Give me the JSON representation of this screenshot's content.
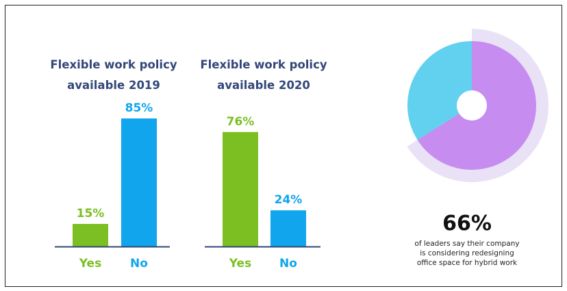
{
  "chart_data": [
    {
      "type": "bar",
      "title_lines": [
        "Flexible work policy",
        "available 2019"
      ],
      "categories": [
        "Yes",
        "No"
      ],
      "values": [
        15,
        85
      ],
      "value_labels": [
        "15%",
        "85%"
      ],
      "ylim": [
        0,
        100
      ],
      "colors": [
        "#7bbf22",
        "#10a5ec"
      ]
    },
    {
      "type": "bar",
      "title_lines": [
        "Flexible work policy",
        "available 2020"
      ],
      "categories": [
        "Yes",
        "No"
      ],
      "values": [
        76,
        24
      ],
      "value_labels": [
        "76%",
        "24%"
      ],
      "ylim": [
        0,
        100
      ],
      "colors": [
        "#7bbf22",
        "#10a5ec"
      ]
    },
    {
      "type": "pie",
      "values": [
        66,
        34
      ],
      "colors": [
        "#c78cf0",
        "#62d0ef"
      ],
      "ring_color": "#e9e1f6",
      "headline": "66%",
      "caption_lines": [
        "of leaders say their company",
        "is considering redesigning",
        "office space for hybrid work"
      ]
    }
  ],
  "colors": {
    "title": "#33477a",
    "axis": "#33477a"
  }
}
